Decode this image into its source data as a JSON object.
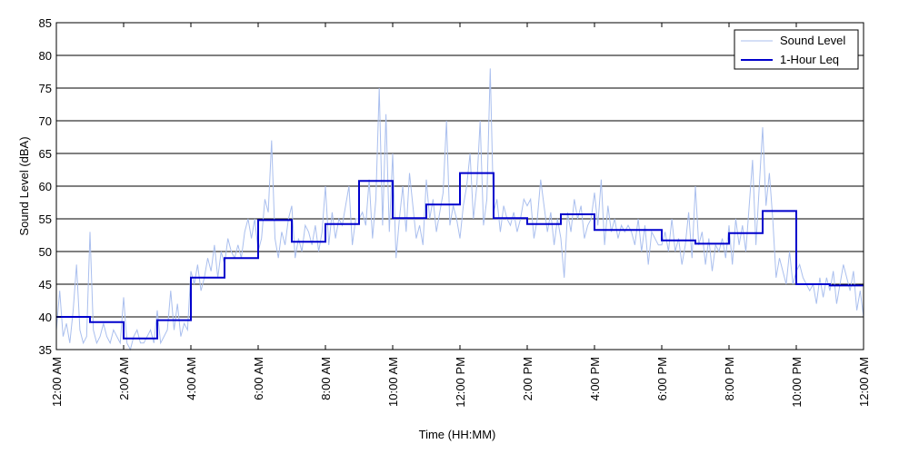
{
  "chart_data": {
    "type": "line",
    "title": "",
    "xlabel": "Time (HH:MM)",
    "ylabel": "Sound Level (dBA)",
    "xlim": [
      0,
      24
    ],
    "ylim": [
      35,
      85
    ],
    "y_ticks": [
      35,
      40,
      45,
      50,
      55,
      60,
      65,
      70,
      75,
      80,
      85
    ],
    "x_ticks": [
      {
        "hour": 0,
        "label": "12:00 AM"
      },
      {
        "hour": 2,
        "label": "2:00 AM"
      },
      {
        "hour": 4,
        "label": "4:00 AM"
      },
      {
        "hour": 6,
        "label": "6:00 AM"
      },
      {
        "hour": 8,
        "label": "8:00 AM"
      },
      {
        "hour": 10,
        "label": "10:00 AM"
      },
      {
        "hour": 12,
        "label": "12:00 PM"
      },
      {
        "hour": 14,
        "label": "2:00 PM"
      },
      {
        "hour": 16,
        "label": "4:00 PM"
      },
      {
        "hour": 18,
        "label": "6:00 PM"
      },
      {
        "hour": 20,
        "label": "8:00 PM"
      },
      {
        "hour": 22,
        "label": "10:00 PM"
      },
      {
        "hour": 24,
        "label": "12:00 AM"
      }
    ],
    "grid": {
      "horizontal": true,
      "vertical": false
    },
    "legend_position": "top-right",
    "series": [
      {
        "name": "Sound Level",
        "style": "thin-line",
        "color": "#aabfee",
        "x": [
          0,
          0.1,
          0.2,
          0.3,
          0.4,
          0.5,
          0.6,
          0.7,
          0.8,
          0.9,
          1,
          1.1,
          1.2,
          1.3,
          1.4,
          1.5,
          1.6,
          1.7,
          1.8,
          1.9,
          2,
          2.1,
          2.2,
          2.3,
          2.4,
          2.5,
          2.6,
          2.7,
          2.8,
          2.9,
          3,
          3.1,
          3.2,
          3.3,
          3.4,
          3.5,
          3.6,
          3.7,
          3.8,
          3.9,
          4,
          4.1,
          4.2,
          4.3,
          4.4,
          4.5,
          4.6,
          4.7,
          4.8,
          4.9,
          5,
          5.1,
          5.2,
          5.3,
          5.4,
          5.5,
          5.6,
          5.7,
          5.8,
          5.9,
          6,
          6.1,
          6.2,
          6.3,
          6.4,
          6.5,
          6.6,
          6.7,
          6.8,
          6.9,
          7,
          7.1,
          7.2,
          7.3,
          7.4,
          7.5,
          7.6,
          7.7,
          7.8,
          7.9,
          8,
          8.1,
          8.2,
          8.3,
          8.4,
          8.5,
          8.6,
          8.7,
          8.8,
          8.9,
          9,
          9.1,
          9.2,
          9.3,
          9.4,
          9.5,
          9.6,
          9.7,
          9.8,
          9.9,
          10,
          10.1,
          10.2,
          10.3,
          10.4,
          10.5,
          10.6,
          10.7,
          10.8,
          10.9,
          11,
          11.1,
          11.2,
          11.3,
          11.4,
          11.5,
          11.6,
          11.7,
          11.8,
          11.9,
          12,
          12.1,
          12.2,
          12.3,
          12.4,
          12.5,
          12.6,
          12.7,
          12.8,
          12.9,
          13,
          13.1,
          13.2,
          13.3,
          13.4,
          13.5,
          13.6,
          13.7,
          13.8,
          13.9,
          14,
          14.1,
          14.2,
          14.3,
          14.4,
          14.5,
          14.6,
          14.7,
          14.8,
          14.9,
          15,
          15.1,
          15.2,
          15.3,
          15.4,
          15.5,
          15.6,
          15.7,
          15.8,
          15.9,
          16,
          16.1,
          16.2,
          16.3,
          16.4,
          16.5,
          16.6,
          16.7,
          16.8,
          16.9,
          17,
          17.1,
          17.2,
          17.3,
          17.4,
          17.5,
          17.6,
          17.7,
          17.8,
          17.9,
          18,
          18.1,
          18.2,
          18.3,
          18.4,
          18.5,
          18.6,
          18.7,
          18.8,
          18.9,
          19,
          19.1,
          19.2,
          19.3,
          19.4,
          19.5,
          19.6,
          19.7,
          19.8,
          19.9,
          20,
          20.1,
          20.2,
          20.3,
          20.4,
          20.5,
          20.6,
          20.7,
          20.8,
          20.9,
          21,
          21.1,
          21.2,
          21.3,
          21.4,
          21.5,
          21.6,
          21.7,
          21.8,
          21.9,
          22,
          22.1,
          22.2,
          22.3,
          22.4,
          22.5,
          22.6,
          22.7,
          22.8,
          22.9,
          23,
          23.1,
          23.2,
          23.3,
          23.4,
          23.5,
          23.6,
          23.7,
          23.8,
          23.9,
          24
        ],
        "y": [
          38,
          44,
          37,
          39,
          36,
          41,
          48,
          38,
          36,
          37,
          53,
          38,
          36,
          37,
          39,
          37,
          36,
          38,
          37,
          36,
          43,
          36,
          35,
          37,
          38,
          36,
          36,
          37,
          38,
          36,
          41,
          36,
          37,
          38,
          44,
          38,
          42,
          37,
          39,
          38,
          47,
          45,
          48,
          44,
          46,
          49,
          47,
          51,
          46,
          50,
          48,
          52,
          50,
          49,
          51,
          49,
          53,
          55,
          52,
          55,
          50,
          52,
          58,
          56,
          67,
          52,
          49,
          53,
          51,
          55,
          57,
          49,
          52,
          50,
          54,
          53,
          51,
          54,
          50,
          53,
          60,
          51,
          56,
          52,
          55,
          54,
          57,
          60,
          51,
          55,
          55,
          56,
          54,
          61,
          52,
          58,
          75,
          54,
          71,
          53,
          65,
          49,
          55,
          60,
          53,
          62,
          57,
          52,
          54,
          51,
          61,
          55,
          58,
          53,
          56,
          59,
          70,
          54,
          57,
          55,
          52,
          57,
          60,
          65,
          55,
          60,
          70,
          54,
          58,
          78,
          56,
          58,
          53,
          57,
          55,
          54,
          56,
          53,
          55,
          58,
          57,
          58,
          52,
          55,
          61,
          57,
          53,
          56,
          51,
          55,
          52,
          46,
          56,
          53,
          58,
          55,
          57,
          52,
          54,
          55,
          59,
          54,
          61,
          51,
          57,
          53,
          55,
          52,
          54,
          53,
          54,
          53,
          51,
          55,
          50,
          54,
          48,
          53,
          52,
          51,
          51,
          53,
          50,
          55,
          50,
          52,
          48,
          51,
          56,
          49,
          60,
          51,
          53,
          48,
          52,
          47,
          51,
          50,
          52,
          49,
          54,
          48,
          55,
          51,
          54,
          50,
          57,
          64,
          51,
          60,
          69,
          57,
          62,
          55,
          46,
          49,
          47,
          45,
          50,
          45,
          47,
          48,
          46,
          45,
          44,
          45,
          42,
          46,
          43,
          46,
          44,
          47,
          42,
          45,
          48,
          46,
          44,
          47,
          41,
          44,
          40
        ]
      },
      {
        "name": "1-Hour Leq",
        "style": "step",
        "color": "#0000cc",
        "hours": [
          0,
          1,
          2,
          3,
          4,
          5,
          6,
          7,
          8,
          9,
          10,
          11,
          12,
          13,
          14,
          15,
          16,
          17,
          18,
          19,
          20,
          21,
          22,
          23
        ],
        "values": [
          40.0,
          39.2,
          36.7,
          39.5,
          46.0,
          49.0,
          54.8,
          51.5,
          54.2,
          60.8,
          55.1,
          57.2,
          62.0,
          55.1,
          54.2,
          55.7,
          53.3,
          53.3,
          51.7,
          51.2,
          52.8,
          56.2,
          45.0,
          44.8
        ]
      }
    ]
  }
}
